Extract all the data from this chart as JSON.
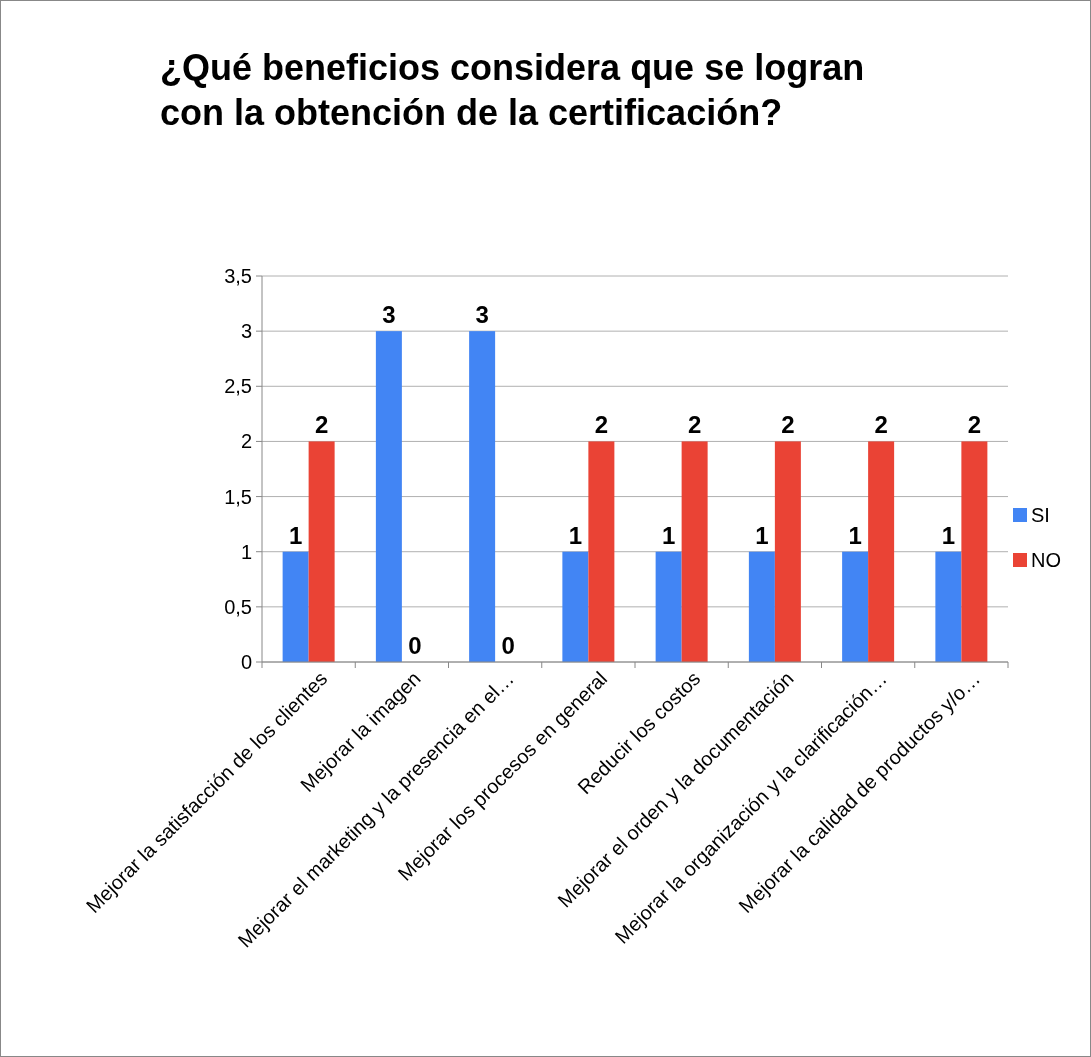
{
  "chart_data": {
    "type": "bar",
    "title": "¿Qué beneficios considera que se logran con la obtención de la certificación?",
    "categories": [
      "Mejorar la satisfacción de los clientes",
      "Mejorar la imagen",
      "Mejorar el marketing y la presencia en el…",
      "Mejorar los procesos en general",
      "Reducir los costos",
      "Mejorar el orden y la documentación",
      "Mejorar la organización y la clarificación…",
      "Mejorar la calidad de productos y/o…"
    ],
    "series": [
      {
        "name": "SI",
        "color": "#4285f4",
        "values": [
          1,
          3,
          3,
          1,
          1,
          1,
          1,
          1
        ]
      },
      {
        "name": "NO",
        "color": "#ea4335",
        "values": [
          2,
          0,
          0,
          2,
          2,
          2,
          2,
          2
        ]
      }
    ],
    "ylim": [
      0,
      3.5
    ],
    "yticks": [
      {
        "value": 0,
        "label": "0"
      },
      {
        "value": 0.5,
        "label": "0,5"
      },
      {
        "value": 1,
        "label": "1"
      },
      {
        "value": 1.5,
        "label": "1,5"
      },
      {
        "value": 2,
        "label": "2"
      },
      {
        "value": 2.5,
        "label": "2,5"
      },
      {
        "value": 3,
        "label": "3"
      },
      {
        "value": 3.5,
        "label": "3,5"
      }
    ],
    "grid": "y",
    "legend": "right",
    "data_labels": true
  }
}
